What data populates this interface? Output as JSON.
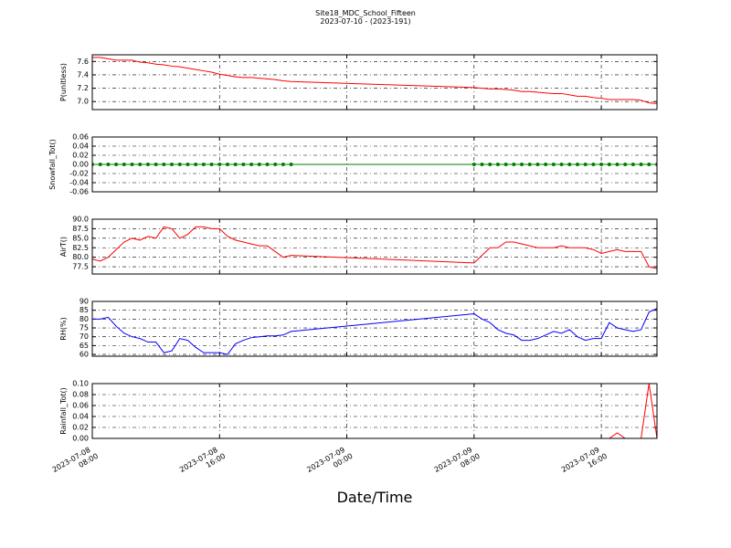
{
  "figure": {
    "title": "Site18_MDC_School_Fifteen",
    "subtitle": "2023-07-10 - (2023-191)",
    "xlabel": "Date/Time"
  },
  "chart_data": [
    {
      "type": "line",
      "ylabel": "P(unitless)",
      "color": "#ff0000",
      "grid": true,
      "xlim": [
        "2023-07-08 08:00",
        "2023-07-09 19:30"
      ],
      "xticks": [
        "2023-07-08 08:00",
        "2023-07-08 16:00",
        "2023-07-09 00:00",
        "2023-07-09 08:00",
        "2023-07-09 16:00"
      ],
      "ylim": [
        6.88,
        7.7
      ],
      "yticks": [
        {
          "value": 7,
          "label": "7.0"
        },
        7.2,
        7.4,
        7.6
      ],
      "x": [
        "2023-07-08 08:00",
        "2023-07-08 08:30",
        "2023-07-08 09:00",
        "2023-07-08 09:30",
        "2023-07-08 10:00",
        "2023-07-08 10:30",
        "2023-07-08 11:00",
        "2023-07-08 11:30",
        "2023-07-08 12:00",
        "2023-07-08 12:30",
        "2023-07-08 13:00",
        "2023-07-08 13:30",
        "2023-07-08 14:00",
        "2023-07-08 14:30",
        "2023-07-08 15:00",
        "2023-07-08 15:30",
        "2023-07-08 16:00",
        "2023-07-08 16:30",
        "2023-07-08 17:00",
        "2023-07-08 17:30",
        "2023-07-08 18:00",
        "2023-07-08 18:30",
        "2023-07-08 19:00",
        "2023-07-08 19:30",
        "2023-07-08 20:00",
        "2023-07-08 20:30",
        "2023-07-09 08:00",
        "2023-07-09 08:30",
        "2023-07-09 09:00",
        "2023-07-09 09:30",
        "2023-07-09 10:00",
        "2023-07-09 10:30",
        "2023-07-09 11:00",
        "2023-07-09 11:30",
        "2023-07-09 12:00",
        "2023-07-09 12:30",
        "2023-07-09 13:00",
        "2023-07-09 13:30",
        "2023-07-09 14:00",
        "2023-07-09 14:30",
        "2023-07-09 15:00",
        "2023-07-09 15:30",
        "2023-07-09 16:00",
        "2023-07-09 16:30",
        "2023-07-09 17:00",
        "2023-07-09 17:30",
        "2023-07-09 18:00",
        "2023-07-09 18:30",
        "2023-07-09 19:00",
        "2023-07-09 19:30"
      ],
      "values": [
        7.66,
        7.66,
        7.64,
        7.62,
        7.62,
        7.62,
        7.59,
        7.58,
        7.56,
        7.55,
        7.53,
        7.52,
        7.5,
        7.48,
        7.46,
        7.44,
        7.41,
        7.39,
        7.37,
        7.36,
        7.36,
        7.35,
        7.34,
        7.33,
        7.31,
        7.3,
        7.21,
        7.2,
        7.19,
        7.19,
        7.18,
        7.17,
        7.15,
        7.15,
        7.14,
        7.13,
        7.12,
        7.12,
        7.1,
        7.08,
        7.08,
        7.06,
        7.05,
        7.03,
        7.03,
        7.03,
        7.03,
        7.02,
        6.98,
        6.97
      ]
    },
    {
      "type": "line",
      "ylabel": "Snowfall_Tot()",
      "color": "#008000",
      "markers": true,
      "grid": true,
      "xlim": [
        "2023-07-08 08:00",
        "2023-07-09 19:30"
      ],
      "xticks": [
        "2023-07-08 08:00",
        "2023-07-08 16:00",
        "2023-07-09 00:00",
        "2023-07-09 08:00",
        "2023-07-09 16:00"
      ],
      "ylim": [
        -0.06,
        0.06
      ],
      "yticks": [
        -0.06,
        -0.04,
        -0.02,
        {
          "value": 0,
          "label": "0.00"
        },
        0.02,
        0.04,
        0.06
      ],
      "x": [
        "2023-07-08 08:00",
        "2023-07-08 08:30",
        "2023-07-08 09:00",
        "2023-07-08 09:30",
        "2023-07-08 10:00",
        "2023-07-08 10:30",
        "2023-07-08 11:00",
        "2023-07-08 11:30",
        "2023-07-08 12:00",
        "2023-07-08 12:30",
        "2023-07-08 13:00",
        "2023-07-08 13:30",
        "2023-07-08 14:00",
        "2023-07-08 14:30",
        "2023-07-08 15:00",
        "2023-07-08 15:30",
        "2023-07-08 16:00",
        "2023-07-08 16:30",
        "2023-07-08 17:00",
        "2023-07-08 17:30",
        "2023-07-08 18:00",
        "2023-07-08 18:30",
        "2023-07-08 19:00",
        "2023-07-08 19:30",
        "2023-07-08 20:00",
        "2023-07-08 20:30",
        "2023-07-09 08:00",
        "2023-07-09 08:30",
        "2023-07-09 09:00",
        "2023-07-09 09:30",
        "2023-07-09 10:00",
        "2023-07-09 10:30",
        "2023-07-09 11:00",
        "2023-07-09 11:30",
        "2023-07-09 12:00",
        "2023-07-09 12:30",
        "2023-07-09 13:00",
        "2023-07-09 13:30",
        "2023-07-09 14:00",
        "2023-07-09 14:30",
        "2023-07-09 15:00",
        "2023-07-09 15:30",
        "2023-07-09 16:00",
        "2023-07-09 16:30",
        "2023-07-09 17:00",
        "2023-07-09 17:30",
        "2023-07-09 18:00",
        "2023-07-09 18:30",
        "2023-07-09 19:00",
        "2023-07-09 19:30"
      ],
      "values": [
        0,
        0,
        0,
        0,
        0,
        0,
        0,
        0,
        0,
        0,
        0,
        0,
        0,
        0,
        0,
        0,
        0,
        0,
        0,
        0,
        0,
        0,
        0,
        0,
        0,
        0,
        0,
        0,
        0,
        0,
        0,
        0,
        0,
        0,
        0,
        0,
        0,
        0,
        0,
        0,
        0,
        0,
        0,
        0,
        0,
        0,
        0,
        0,
        0,
        0
      ]
    },
    {
      "type": "line",
      "ylabel": "AirT()",
      "color": "#ff0000",
      "grid": true,
      "xlim": [
        "2023-07-08 08:00",
        "2023-07-09 19:30"
      ],
      "xticks": [
        "2023-07-08 08:00",
        "2023-07-08 16:00",
        "2023-07-09 00:00",
        "2023-07-09 08:00",
        "2023-07-09 16:00"
      ],
      "ylim": [
        75.6,
        90
      ],
      "yticks": [
        77.5,
        {
          "value": 80,
          "label": "80.0"
        },
        82.5,
        {
          "value": 85,
          "label": "85.0"
        },
        87.5,
        {
          "value": 90,
          "label": "90.0"
        }
      ],
      "x": [
        "2023-07-08 08:00",
        "2023-07-08 08:30",
        "2023-07-08 09:00",
        "2023-07-08 09:30",
        "2023-07-08 10:00",
        "2023-07-08 10:30",
        "2023-07-08 11:00",
        "2023-07-08 11:30",
        "2023-07-08 12:00",
        "2023-07-08 12:30",
        "2023-07-08 13:00",
        "2023-07-08 13:30",
        "2023-07-08 14:00",
        "2023-07-08 14:30",
        "2023-07-08 15:00",
        "2023-07-08 15:30",
        "2023-07-08 16:00",
        "2023-07-08 16:30",
        "2023-07-08 17:00",
        "2023-07-08 17:30",
        "2023-07-08 18:00",
        "2023-07-08 18:30",
        "2023-07-08 19:00",
        "2023-07-08 19:30",
        "2023-07-08 20:00",
        "2023-07-08 20:30",
        "2023-07-09 08:00",
        "2023-07-09 08:30",
        "2023-07-09 09:00",
        "2023-07-09 09:30",
        "2023-07-09 10:00",
        "2023-07-09 10:30",
        "2023-07-09 11:00",
        "2023-07-09 11:30",
        "2023-07-09 12:00",
        "2023-07-09 12:30",
        "2023-07-09 13:00",
        "2023-07-09 13:30",
        "2023-07-09 14:00",
        "2023-07-09 14:30",
        "2023-07-09 15:00",
        "2023-07-09 15:30",
        "2023-07-09 16:00",
        "2023-07-09 16:30",
        "2023-07-09 17:00",
        "2023-07-09 17:30",
        "2023-07-09 18:00",
        "2023-07-09 18:30",
        "2023-07-09 19:00",
        "2023-07-09 19:30"
      ],
      "values": [
        79.5,
        79,
        80,
        82,
        84,
        85,
        84.5,
        85.5,
        85,
        88,
        87.5,
        85,
        86,
        88,
        88,
        87.5,
        87.5,
        85.5,
        84.5,
        84,
        83.5,
        83,
        83,
        81.5,
        80,
        80.5,
        78.5,
        80.5,
        82.5,
        82.5,
        84,
        84,
        83.5,
        83,
        82.5,
        82.5,
        82.5,
        83,
        82.5,
        82.5,
        82.5,
        82,
        81,
        81.5,
        82,
        81.5,
        81.5,
        81.5,
        77.5,
        77
      ]
    },
    {
      "type": "line",
      "ylabel": "RH(%)",
      "color": "#0000ff",
      "grid": true,
      "xlim": [
        "2023-07-08 08:00",
        "2023-07-09 19:30"
      ],
      "xticks": [
        "2023-07-08 08:00",
        "2023-07-08 16:00",
        "2023-07-09 00:00",
        "2023-07-09 08:00",
        "2023-07-09 16:00"
      ],
      "ylim": [
        59,
        90
      ],
      "yticks": [
        60,
        65,
        70,
        75,
        80,
        85,
        90
      ],
      "x": [
        "2023-07-08 08:00",
        "2023-07-08 08:30",
        "2023-07-08 09:00",
        "2023-07-08 09:30",
        "2023-07-08 10:00",
        "2023-07-08 10:30",
        "2023-07-08 11:00",
        "2023-07-08 11:30",
        "2023-07-08 12:00",
        "2023-07-08 12:30",
        "2023-07-08 13:00",
        "2023-07-08 13:30",
        "2023-07-08 14:00",
        "2023-07-08 14:30",
        "2023-07-08 15:00",
        "2023-07-08 15:30",
        "2023-07-08 16:00",
        "2023-07-08 16:30",
        "2023-07-08 17:00",
        "2023-07-08 17:30",
        "2023-07-08 18:00",
        "2023-07-08 18:30",
        "2023-07-08 19:00",
        "2023-07-08 19:30",
        "2023-07-08 20:00",
        "2023-07-08 20:30",
        "2023-07-09 08:00",
        "2023-07-09 08:30",
        "2023-07-09 09:00",
        "2023-07-09 09:30",
        "2023-07-09 10:00",
        "2023-07-09 10:30",
        "2023-07-09 11:00",
        "2023-07-09 11:30",
        "2023-07-09 12:00",
        "2023-07-09 12:30",
        "2023-07-09 13:00",
        "2023-07-09 13:30",
        "2023-07-09 14:00",
        "2023-07-09 14:30",
        "2023-07-09 15:00",
        "2023-07-09 15:30",
        "2023-07-09 16:00",
        "2023-07-09 16:30",
        "2023-07-09 17:00",
        "2023-07-09 17:30",
        "2023-07-09 18:00",
        "2023-07-09 18:30",
        "2023-07-09 19:00",
        "2023-07-09 19:30"
      ],
      "values": [
        80,
        80,
        81,
        76,
        72,
        70,
        69,
        67,
        67,
        61,
        62,
        69,
        68,
        64,
        61,
        61,
        61,
        60,
        66,
        68,
        69.5,
        70,
        70.5,
        70.5,
        71,
        73,
        83,
        80,
        78,
        74,
        72,
        71,
        68,
        68,
        69,
        71,
        73,
        72,
        74,
        70,
        68,
        69,
        69,
        78,
        75,
        74,
        73,
        74,
        84,
        86
      ]
    },
    {
      "type": "line",
      "ylabel": "Rainfall_Tot()",
      "color": "#ff0000",
      "grid": true,
      "xlim": [
        "2023-07-08 08:00",
        "2023-07-09 19:30"
      ],
      "xticks": [
        {
          "value": "2023-07-08 08:00",
          "label": "2023-07-08\n08:00"
        },
        {
          "value": "2023-07-08 16:00",
          "label": "2023-07-08\n16:00"
        },
        {
          "value": "2023-07-09 00:00",
          "label": "2023-07-09\n00:00"
        },
        {
          "value": "2023-07-09 08:00",
          "label": "2023-07-09\n08:00"
        },
        {
          "value": "2023-07-09 16:00",
          "label": "2023-07-09\n16:00"
        }
      ],
      "ylim": [
        0,
        0.1
      ],
      "yticks": [
        {
          "value": 0,
          "label": "0.00"
        },
        0.02,
        0.04,
        0.06,
        0.08,
        {
          "value": 0.1,
          "label": "0.10"
        }
      ],
      "x": [
        "2023-07-08 08:00",
        "2023-07-08 08:30",
        "2023-07-08 09:00",
        "2023-07-08 09:30",
        "2023-07-08 10:00",
        "2023-07-08 10:30",
        "2023-07-08 11:00",
        "2023-07-08 11:30",
        "2023-07-08 12:00",
        "2023-07-08 12:30",
        "2023-07-08 13:00",
        "2023-07-08 13:30",
        "2023-07-08 14:00",
        "2023-07-08 14:30",
        "2023-07-08 15:00",
        "2023-07-08 15:30",
        "2023-07-08 16:00",
        "2023-07-08 16:30",
        "2023-07-08 17:00",
        "2023-07-08 17:30",
        "2023-07-08 18:00",
        "2023-07-08 18:30",
        "2023-07-08 19:00",
        "2023-07-08 19:30",
        "2023-07-08 20:00",
        "2023-07-08 20:30",
        "2023-07-09 08:00",
        "2023-07-09 08:30",
        "2023-07-09 09:00",
        "2023-07-09 09:30",
        "2023-07-09 10:00",
        "2023-07-09 10:30",
        "2023-07-09 11:00",
        "2023-07-09 11:30",
        "2023-07-09 12:00",
        "2023-07-09 12:30",
        "2023-07-09 13:00",
        "2023-07-09 13:30",
        "2023-07-09 14:00",
        "2023-07-09 14:30",
        "2023-07-09 15:00",
        "2023-07-09 15:30",
        "2023-07-09 16:00",
        "2023-07-09 16:30",
        "2023-07-09 17:00",
        "2023-07-09 17:30",
        "2023-07-09 18:00",
        "2023-07-09 18:30",
        "2023-07-09 19:00",
        "2023-07-09 19:30"
      ],
      "values": [
        0,
        0,
        0,
        0,
        0,
        0,
        0,
        0,
        0,
        0,
        0,
        0,
        0,
        0,
        0,
        0,
        0,
        0,
        0,
        0,
        0,
        0,
        0,
        0,
        0,
        0,
        0,
        0,
        0,
        0,
        0,
        0,
        0,
        0,
        0,
        0,
        0,
        0,
        0,
        0,
        0,
        0,
        0,
        0,
        0.01,
        0,
        0,
        0,
        0.1,
        0
      ]
    }
  ]
}
